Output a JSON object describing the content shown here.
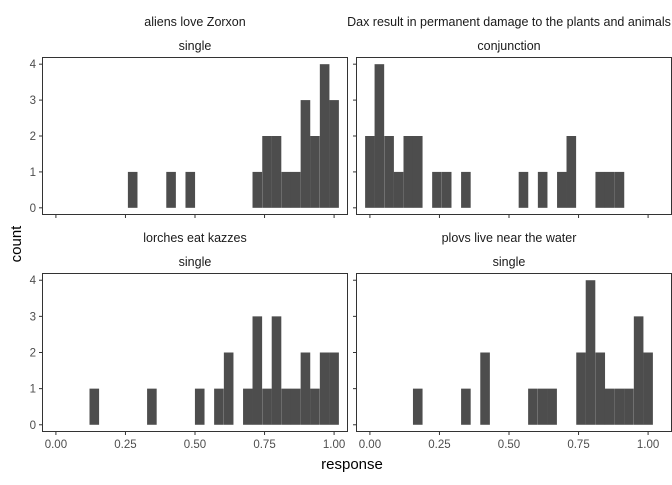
{
  "chart_data": {
    "type": "bar",
    "xlabel": "response",
    "ylabel": "count",
    "xlim": [
      -0.05,
      1.05
    ],
    "ylim": [
      -0.2,
      4.2
    ],
    "x_ticks": [
      0,
      0.25,
      0.5,
      0.75,
      1
    ],
    "x_tick_labels": [
      "0.00",
      "0.25",
      "0.50",
      "0.75",
      "1.00"
    ],
    "y_ticks": [
      0,
      1,
      2,
      3,
      4
    ],
    "y_tick_labels": [
      "0",
      "1",
      "2",
      "3",
      "4"
    ],
    "bin_width": 0.0345,
    "grid": false,
    "bar_color": "#4d4d4d",
    "panels": [
      {
        "title": "aliens love  Zorxon",
        "condition": "single",
        "bins": [
          {
            "x": 0.276,
            "count": 1
          },
          {
            "x": 0.414,
            "count": 1
          },
          {
            "x": 0.483,
            "count": 1
          },
          {
            "x": 0.724,
            "count": 1
          },
          {
            "x": 0.759,
            "count": 2
          },
          {
            "x": 0.793,
            "count": 2
          },
          {
            "x": 0.828,
            "count": 1
          },
          {
            "x": 0.862,
            "count": 1
          },
          {
            "x": 0.897,
            "count": 3
          },
          {
            "x": 0.931,
            "count": 2
          },
          {
            "x": 0.966,
            "count": 4
          },
          {
            "x": 1.0,
            "count": 3
          }
        ]
      },
      {
        "title": "Dax result in permanent damage  to the plants and animals",
        "condition": "conjunction",
        "bins": [
          {
            "x": 0.0,
            "count": 2
          },
          {
            "x": 0.034,
            "count": 4
          },
          {
            "x": 0.069,
            "count": 2
          },
          {
            "x": 0.103,
            "count": 1
          },
          {
            "x": 0.138,
            "count": 2
          },
          {
            "x": 0.172,
            "count": 2
          },
          {
            "x": 0.241,
            "count": 1
          },
          {
            "x": 0.276,
            "count": 1
          },
          {
            "x": 0.345,
            "count": 1
          },
          {
            "x": 0.552,
            "count": 1
          },
          {
            "x": 0.621,
            "count": 1
          },
          {
            "x": 0.69,
            "count": 1
          },
          {
            "x": 0.724,
            "count": 2
          },
          {
            "x": 0.828,
            "count": 1
          },
          {
            "x": 0.862,
            "count": 1
          },
          {
            "x": 0.897,
            "count": 1
          }
        ]
      },
      {
        "title": "lorches eat  kazzes",
        "condition": "single",
        "bins": [
          {
            "x": 0.138,
            "count": 1
          },
          {
            "x": 0.345,
            "count": 1
          },
          {
            "x": 0.517,
            "count": 1
          },
          {
            "x": 0.586,
            "count": 1
          },
          {
            "x": 0.621,
            "count": 2
          },
          {
            "x": 0.69,
            "count": 1
          },
          {
            "x": 0.724,
            "count": 3
          },
          {
            "x": 0.759,
            "count": 1
          },
          {
            "x": 0.793,
            "count": 3
          },
          {
            "x": 0.828,
            "count": 1
          },
          {
            "x": 0.862,
            "count": 1
          },
          {
            "x": 0.897,
            "count": 2
          },
          {
            "x": 0.931,
            "count": 1
          },
          {
            "x": 0.966,
            "count": 2
          },
          {
            "x": 1.0,
            "count": 2
          }
        ]
      },
      {
        "title": "plovs live  near the water",
        "condition": "single",
        "bins": [
          {
            "x": 0.172,
            "count": 1
          },
          {
            "x": 0.345,
            "count": 1
          },
          {
            "x": 0.414,
            "count": 2
          },
          {
            "x": 0.586,
            "count": 1
          },
          {
            "x": 0.621,
            "count": 1
          },
          {
            "x": 0.655,
            "count": 1
          },
          {
            "x": 0.759,
            "count": 2
          },
          {
            "x": 0.793,
            "count": 4
          },
          {
            "x": 0.828,
            "count": 2
          },
          {
            "x": 0.862,
            "count": 1
          },
          {
            "x": 0.897,
            "count": 1
          },
          {
            "x": 0.931,
            "count": 1
          },
          {
            "x": 0.966,
            "count": 3
          },
          {
            "x": 1.0,
            "count": 2
          }
        ]
      }
    ]
  }
}
